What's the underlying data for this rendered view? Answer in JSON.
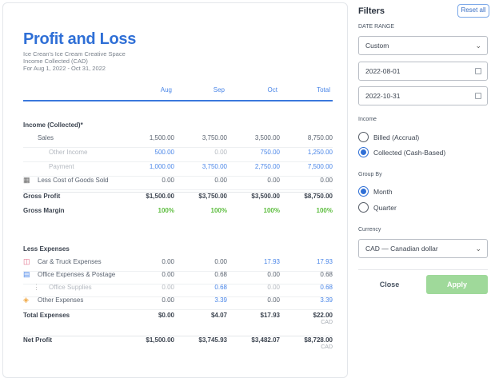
{
  "report": {
    "title": "Profit and Loss",
    "company": "Ice Crean's Ice Cream Creative Space",
    "basis": "Income Collected (CAD)",
    "period": "For Aug 1, 2022 - Oct 31, 2022",
    "columns": [
      "Aug",
      "Sep",
      "Oct",
      "Total"
    ],
    "rows": [
      {
        "label": "Income (Collected)*",
        "style": "header",
        "values": []
      },
      {
        "label": "Sales",
        "indent": 1,
        "values": [
          "1,500.00",
          "3,750.00",
          "3,500.00",
          "8,750.00"
        ],
        "colors": [
          "n",
          "n",
          "n",
          "n"
        ]
      },
      {
        "label": "Other Income",
        "indent": 2,
        "muted": true,
        "values": [
          "500.00",
          "0.00",
          "750.00",
          "1,250.00"
        ],
        "colors": [
          "b",
          "m",
          "b",
          "b"
        ]
      },
      {
        "label": "Payment",
        "indent": 2,
        "muted": true,
        "values": [
          "1,000.00",
          "3,750.00",
          "2,750.00",
          "7,500.00"
        ],
        "colors": [
          "b",
          "b",
          "b",
          "b"
        ]
      },
      {
        "label": "Less Cost of Goods Sold",
        "indent": 1,
        "icon": "cogs-icon",
        "values": [
          "0.00",
          "0.00",
          "0.00",
          "0.00"
        ],
        "colors": [
          "n",
          "n",
          "n",
          "n"
        ]
      },
      {
        "label": "Gross Profit",
        "style": "bold",
        "values": [
          "$1,500.00",
          "$3,750.00",
          "$3,500.00",
          "$8,750.00"
        ]
      },
      {
        "label": "Gross Margin",
        "style": "bold",
        "values": [
          "100%",
          "100%",
          "100%",
          "100%"
        ],
        "colors": [
          "g",
          "g",
          "g",
          "g"
        ]
      },
      {
        "label": "Less Expenses",
        "style": "header",
        "values": []
      },
      {
        "label": "Car & Truck Expenses",
        "indent": 1,
        "icon": "car-icon",
        "values": [
          "0.00",
          "0.00",
          "17.93",
          "17.93"
        ],
        "colors": [
          "n",
          "n",
          "b",
          "b"
        ]
      },
      {
        "label": "Office Expenses & Postage",
        "indent": 1,
        "icon": "printer-icon",
        "values": [
          "0.00",
          "0.68",
          "0.00",
          "0.68"
        ],
        "colors": [
          "n",
          "n",
          "n",
          "n"
        ]
      },
      {
        "label": "Office Supplies",
        "indent": 2,
        "muted": true,
        "icon": "subitem-icon",
        "values": [
          "0.00",
          "0.68",
          "0.00",
          "0.68"
        ],
        "colors": [
          "m",
          "b",
          "m",
          "b"
        ]
      },
      {
        "label": "Other Expenses",
        "indent": 1,
        "icon": "tag-icon",
        "values": [
          "0.00",
          "3.39",
          "0.00",
          "3.39"
        ],
        "colors": [
          "n",
          "b",
          "n",
          "b"
        ]
      },
      {
        "label": "Total Expenses",
        "style": "bold",
        "values": [
          "$0.00",
          "$4.07",
          "$17.93",
          "$22.00"
        ],
        "currency": "CAD"
      },
      {
        "label": "Net Profit",
        "style": "bold",
        "values": [
          "$1,500.00",
          "$3,745.93",
          "$3,482.07",
          "$8,728.00"
        ],
        "currency": "CAD"
      }
    ]
  },
  "filters": {
    "title": "Filters",
    "reset_label": "Reset all",
    "date_range_label": "DATE RANGE",
    "date_range_value": "Custom",
    "start_date": "2022-08-01",
    "end_date": "2022-10-31",
    "income_label": "Income",
    "income_options": [
      "Billed (Accrual)",
      "Collected (Cash-Based)"
    ],
    "income_selected": "Collected (Cash-Based)",
    "group_label": "Group By",
    "group_options": [
      "Month",
      "Quarter"
    ],
    "group_selected": "Month",
    "currency_label": "Currency",
    "currency_value": "CAD — Canadian dollar",
    "close_label": "Close",
    "apply_label": "Apply"
  },
  "colors": {
    "accent": "#2f6fd6",
    "link": "#4a86e8",
    "positive": "#5cbd3e",
    "apply": "#9fd99a"
  }
}
